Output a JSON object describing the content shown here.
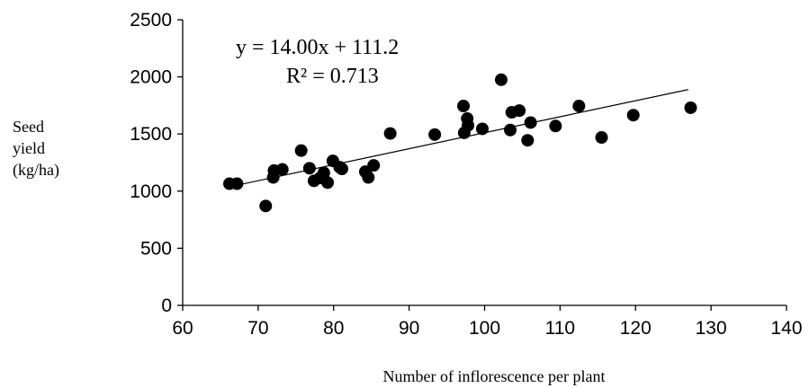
{
  "chart_data": {
    "type": "scatter",
    "title": "",
    "xlabel": "Number of inflorescence per plant",
    "ylabel_lines": [
      "Seed",
      "yield",
      "(kg/ha)"
    ],
    "xlim": [
      60,
      140
    ],
    "ylim": [
      0,
      2500
    ],
    "x_ticks": [
      "60",
      "70",
      "80",
      "90",
      "100",
      "110",
      "120",
      "130",
      "140"
    ],
    "y_ticks": [
      "0",
      "500",
      "1000",
      "1500",
      "2000",
      "2500"
    ],
    "grid": false,
    "legend": "none",
    "marker_color": "#000000",
    "series": [
      {
        "points": [
          [
            66.2,
            1065
          ],
          [
            67.2,
            1065
          ],
          [
            71,
            870
          ],
          [
            72,
            1120
          ],
          [
            72.1,
            1180
          ],
          [
            73.2,
            1190
          ],
          [
            75.7,
            1355
          ],
          [
            76.8,
            1200
          ],
          [
            77.4,
            1090
          ],
          [
            78.2,
            1115
          ],
          [
            78.7,
            1160
          ],
          [
            79.2,
            1075
          ],
          [
            79.9,
            1265
          ],
          [
            80.8,
            1210
          ],
          [
            81.1,
            1195
          ],
          [
            84.2,
            1170
          ],
          [
            84.6,
            1120
          ],
          [
            85.3,
            1225
          ],
          [
            87.5,
            1505
          ],
          [
            93.4,
            1495
          ],
          [
            97.2,
            1745
          ],
          [
            97.3,
            1510
          ],
          [
            97.7,
            1635
          ],
          [
            97.8,
            1575
          ],
          [
            99.7,
            1545
          ],
          [
            102.2,
            1975
          ],
          [
            103.4,
            1535
          ],
          [
            103.6,
            1690
          ],
          [
            104.6,
            1705
          ],
          [
            105.7,
            1445
          ],
          [
            106.1,
            1600
          ],
          [
            109.4,
            1570
          ],
          [
            112.5,
            1745
          ],
          [
            115.5,
            1470
          ],
          [
            119.7,
            1665
          ],
          [
            127.3,
            1730
          ]
        ]
      }
    ],
    "trendline": {
      "equation": "y = 14.00x + 111.2",
      "r_squared": "R² = 0.713",
      "slope": 14.0,
      "intercept": 111.2,
      "x_range": [
        66,
        127
      ]
    }
  }
}
